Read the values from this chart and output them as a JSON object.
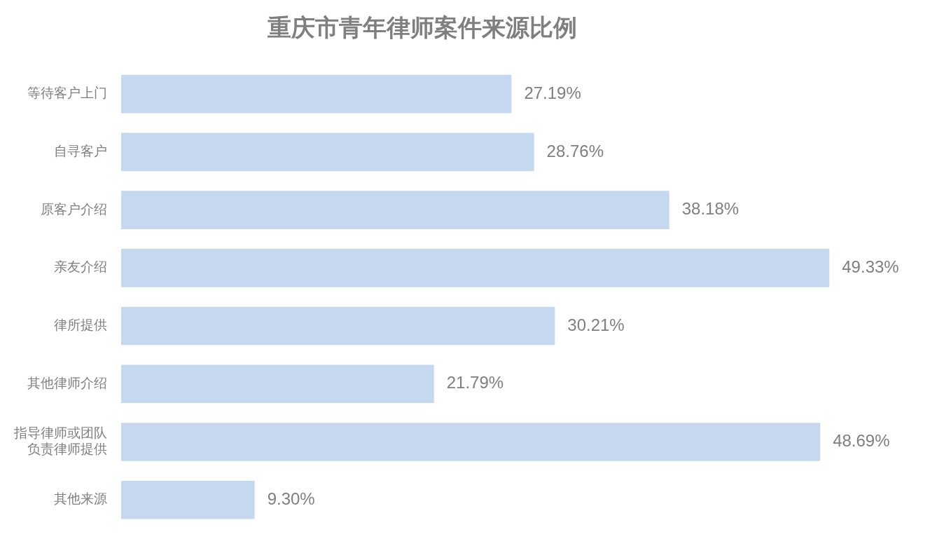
{
  "chart_data": {
    "type": "bar",
    "orientation": "horizontal",
    "title": "重庆市青年律师案件来源比例",
    "categories": [
      "等待客户上门",
      "自寻客户",
      "原客户介绍",
      "亲友介绍",
      "律所提供",
      "其他律师介绍",
      "指导律师或团队负责律师提供",
      "其他来源"
    ],
    "values": [
      27.19,
      28.76,
      38.18,
      49.33,
      30.21,
      21.79,
      48.69,
      9.3
    ],
    "color": "#c5d8ef",
    "value_labels": [
      "27.19%",
      "28.76%",
      "38.18%",
      "49.33%",
      "30.21%",
      "21.79%",
      "48.69%",
      "9.30%"
    ],
    "legend": false
  }
}
